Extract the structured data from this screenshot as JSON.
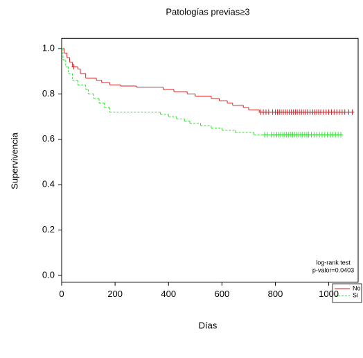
{
  "chart_data": {
    "type": "km",
    "title": "Patologías previas≥3",
    "x_label": "Días",
    "y_label": "Supervivencia",
    "annotations": [
      "log-rank test",
      "p-valor=0.0403"
    ],
    "xlim": [
      0,
      1110
    ],
    "ylim": [
      -0.03,
      1.045
    ],
    "xticks": [
      0,
      200,
      400,
      600,
      800,
      1000
    ],
    "yticks": [
      {
        "value": 0,
        "label": "0.0"
      },
      0.2,
      0.4,
      0.6,
      0.8,
      {
        "value": 1,
        "label": "1.0"
      }
    ],
    "series": [
      {
        "name": "No",
        "color": "#d62020",
        "dash": false,
        "x": [
          0,
          10,
          20,
          30,
          40,
          60,
          70,
          90,
          130,
          150,
          180,
          220,
          280,
          380,
          420,
          470,
          500,
          560,
          590,
          620,
          640,
          680,
          700,
          740,
          1090
        ],
        "values": [
          1.0,
          0.98,
          0.96,
          0.94,
          0.92,
          0.91,
          0.89,
          0.87,
          0.86,
          0.85,
          0.84,
          0.835,
          0.83,
          0.82,
          0.81,
          0.8,
          0.79,
          0.78,
          0.77,
          0.76,
          0.75,
          0.74,
          0.73,
          0.72,
          0.72
        ],
        "censored": [
          45,
          745,
          755,
          765,
          775,
          790,
          800,
          808,
          815,
          822,
          830,
          838,
          845,
          852,
          860,
          868,
          875,
          882,
          890,
          898,
          905,
          912,
          920,
          930,
          940,
          948,
          955,
          962,
          970,
          980,
          990,
          1000,
          1010,
          1020,
          1030,
          1040,
          1050,
          1060,
          1075,
          1088
        ]
      },
      {
        "name": "Si",
        "color": "#33dd33",
        "dash": true,
        "x": [
          0,
          5,
          15,
          25,
          40,
          60,
          90,
          100,
          120,
          140,
          160,
          180,
          370,
          400,
          430,
          460,
          480,
          520,
          560,
          600,
          650,
          720,
          1050
        ],
        "values": [
          1.0,
          0.95,
          0.92,
          0.89,
          0.86,
          0.84,
          0.82,
          0.8,
          0.78,
          0.76,
          0.74,
          0.72,
          0.71,
          0.7,
          0.69,
          0.68,
          0.67,
          0.66,
          0.65,
          0.64,
          0.63,
          0.62,
          0.62
        ],
        "censored": [
          760,
          770,
          785,
          795,
          805,
          812,
          820,
          828,
          835,
          842,
          850,
          858,
          865,
          872,
          880,
          888,
          895,
          902,
          910,
          918,
          925,
          935,
          945,
          955,
          965,
          975,
          985,
          995,
          1005,
          1015,
          1025,
          1035,
          1045
        ]
      }
    ]
  }
}
